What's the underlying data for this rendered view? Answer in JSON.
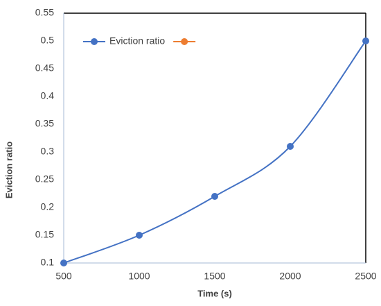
{
  "chart_data": {
    "type": "line",
    "x_label": "Time (s)",
    "y_label": "Eviction ratio",
    "x": [
      500,
      1000,
      1500,
      2000,
      2500
    ],
    "series": [
      {
        "name": "Eviction ratio",
        "color": "#4472c4",
        "values": [
          0.1,
          0.15,
          0.22,
          0.31,
          0.5
        ]
      },
      {
        "color": "#ed7d31",
        "values": [
          null,
          null,
          null,
          null,
          null
        ]
      }
    ],
    "xlim": [
      500,
      2500
    ],
    "xticks": [
      500,
      1000,
      1500,
      2000,
      2500
    ],
    "ylim": [
      0.1,
      0.55
    ],
    "yticks": [
      0.1,
      0.15,
      0.2,
      0.25,
      0.3,
      0.35,
      0.4,
      0.45,
      0.5,
      0.55
    ],
    "smooth": true,
    "grid": false,
    "legend": "top-left"
  }
}
